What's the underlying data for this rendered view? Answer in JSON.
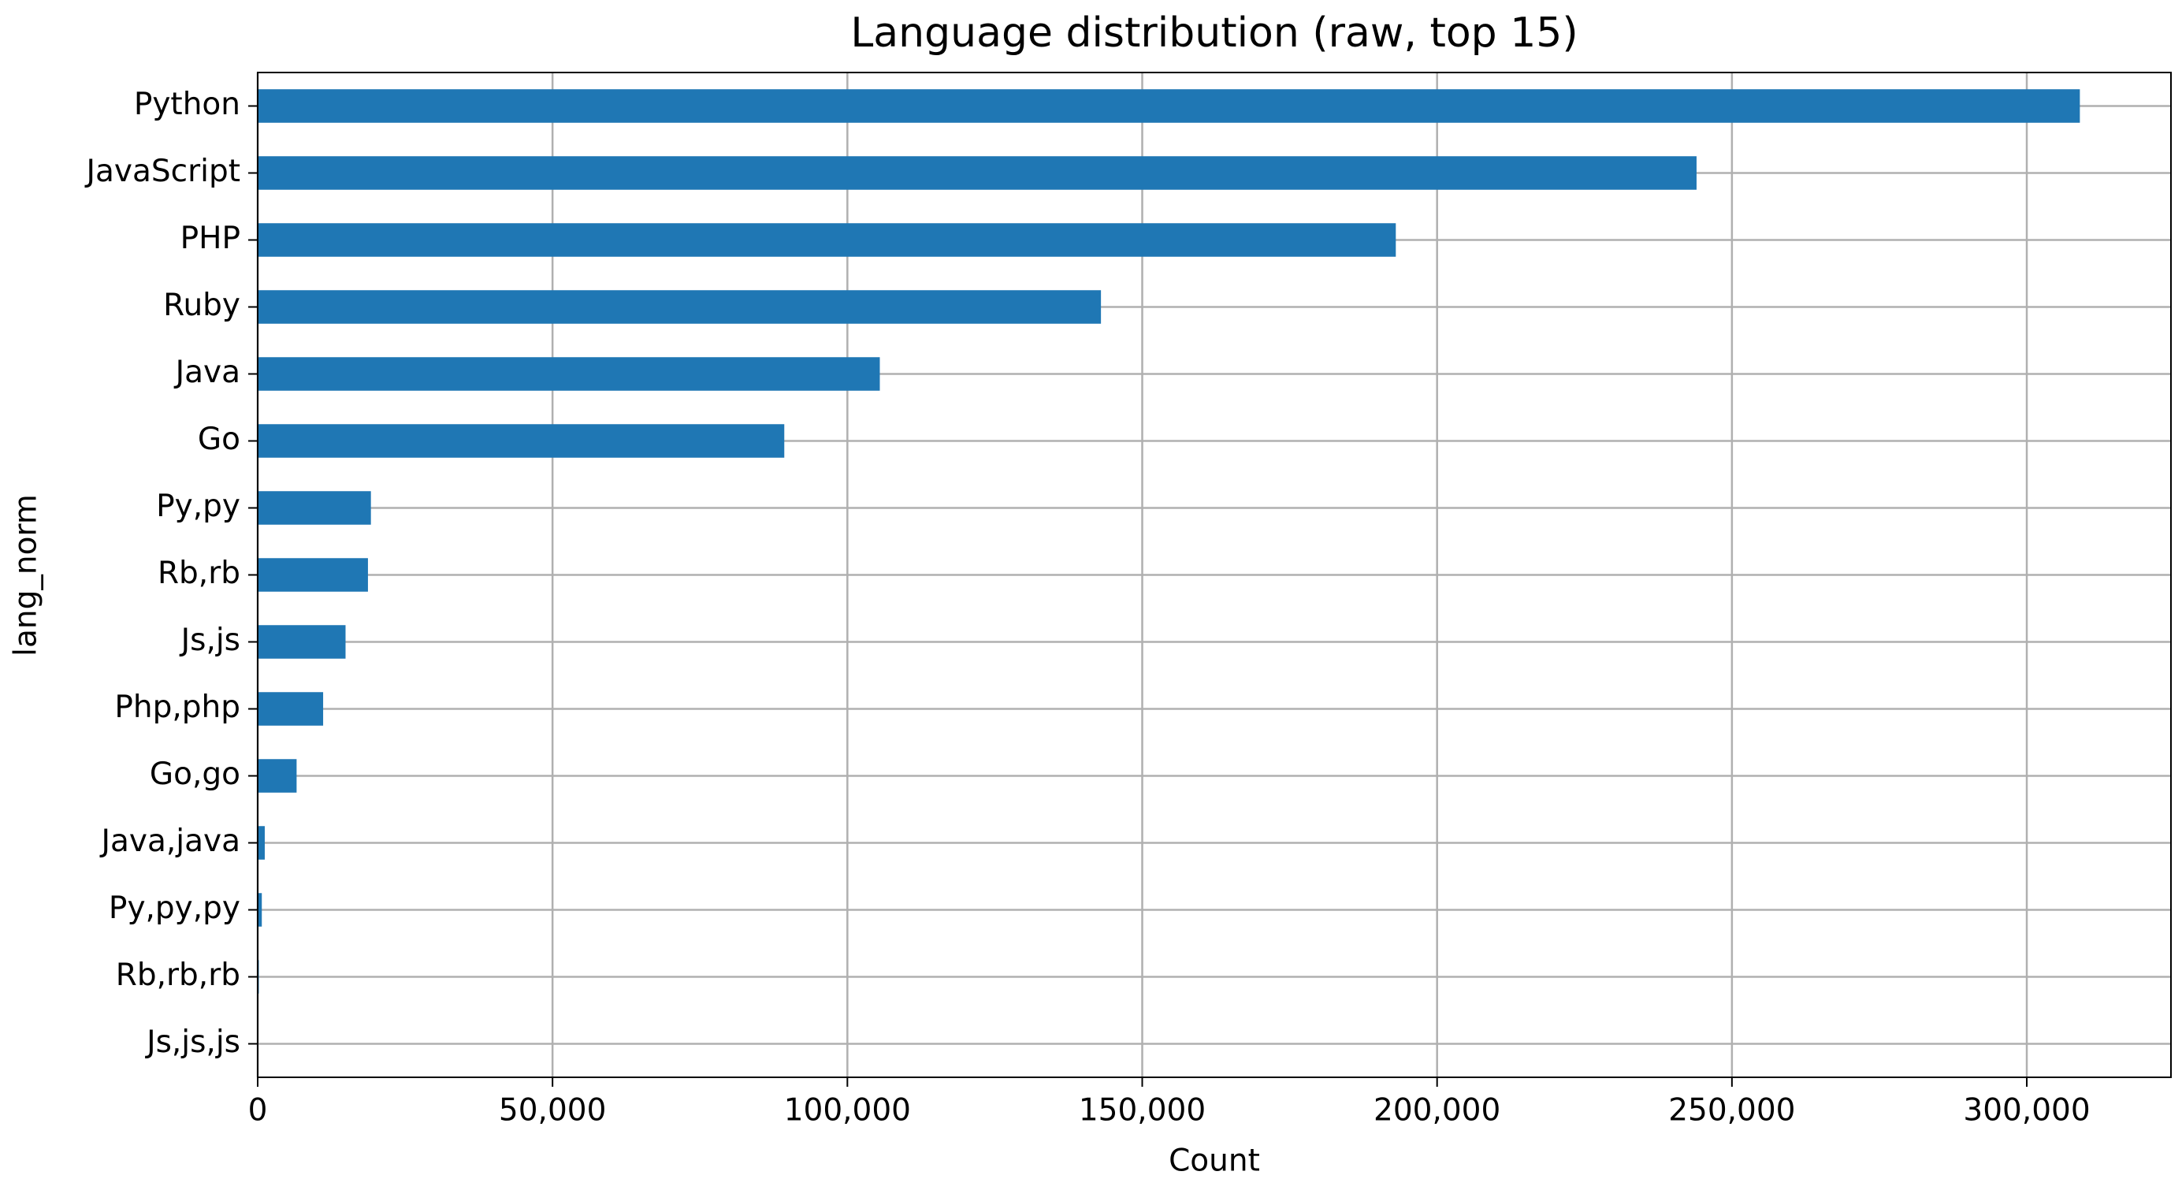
{
  "chart_data": {
    "type": "barh",
    "title": "Language distribution (raw, top 15)",
    "x_label": "Count",
    "y_label": "lang_norm",
    "categories": [
      "Python",
      "JavaScript",
      "PHP",
      "Ruby",
      "Java",
      "Go",
      "Py,py",
      "Rb,rb",
      "Js,js",
      "Php,php",
      "Go,go",
      "Java,java",
      "Py,py,py",
      "Rb,rb,rb",
      "Js,js,js"
    ],
    "values": [
      309000,
      244000,
      193000,
      143000,
      105500,
      89300,
      19200,
      18700,
      14900,
      11100,
      6600,
      1200,
      700,
      200,
      100
    ],
    "color": "#1f77b4",
    "xlim": [
      0,
      324450
    ],
    "xticks": [
      0,
      {
        "value": 50000,
        "label": "50,000"
      },
      {
        "value": 100000,
        "label": "100,000"
      },
      {
        "value": 150000,
        "label": "150,000"
      },
      {
        "value": 200000,
        "label": "200,000"
      },
      {
        "value": 250000,
        "label": "250,000"
      },
      {
        "value": 300000,
        "label": "300,000"
      }
    ],
    "grid": true
  }
}
